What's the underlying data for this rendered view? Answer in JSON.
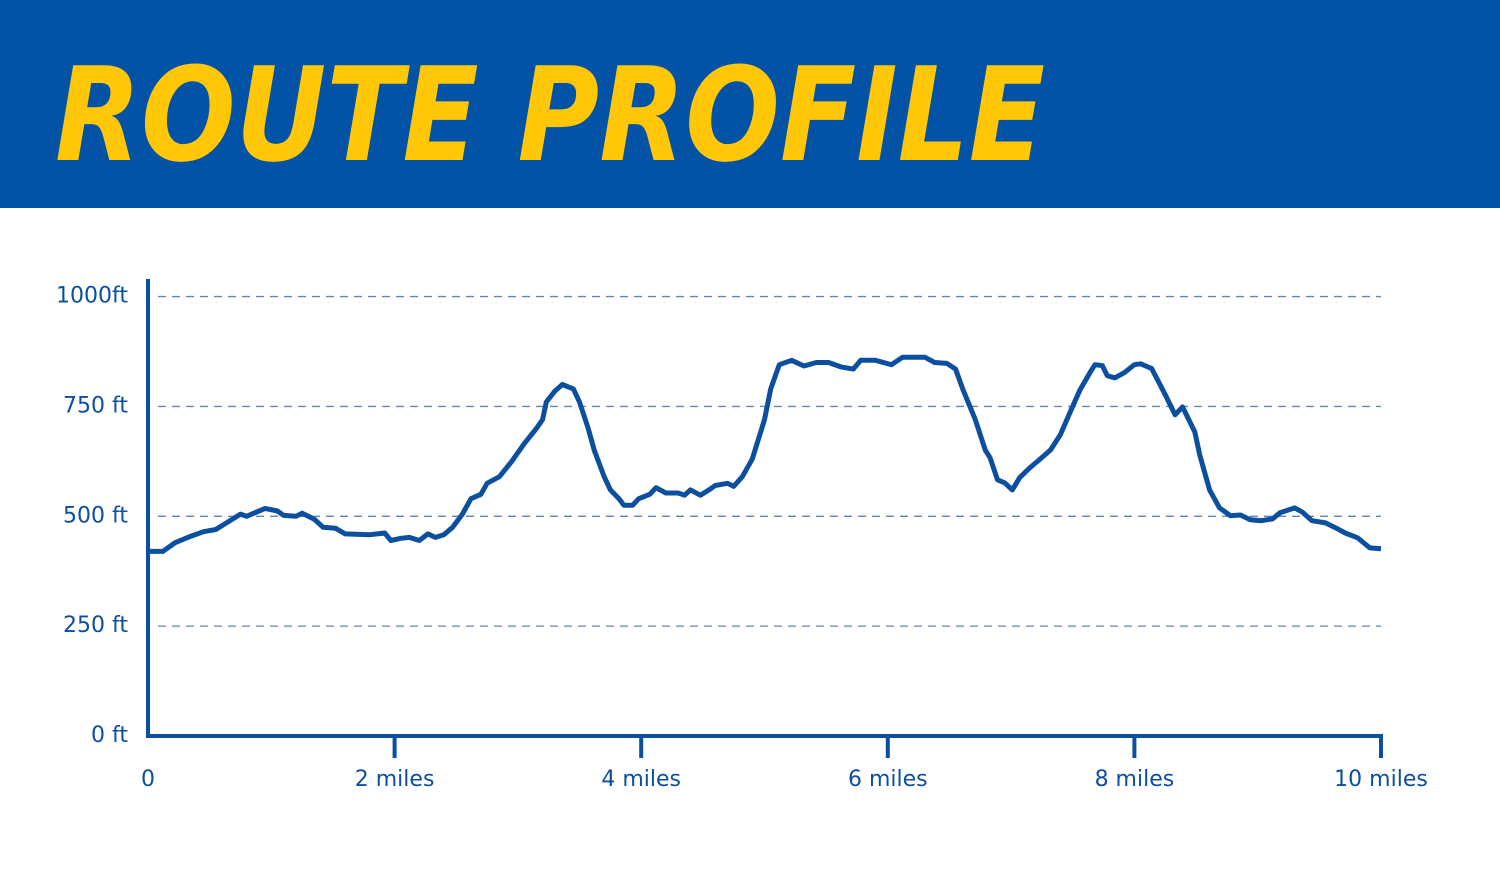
{
  "chart_data": {
    "type": "line",
    "title": "ROUTE PROFILE",
    "color": "#0b4f9e",
    "grid": true,
    "xlim": [
      0,
      10
    ],
    "ylim": [
      0,
      1040
    ],
    "xticks": [
      0,
      {
        "value": 2,
        "label": "2 miles"
      },
      {
        "value": 4,
        "label": "4 miles"
      },
      {
        "value": 6,
        "label": "6 miles"
      },
      {
        "value": 8,
        "label": "8 miles"
      },
      {
        "value": 10,
        "label": "10 miles"
      }
    ],
    "yticks": [
      {
        "value": 0,
        "label": "0 ft"
      },
      {
        "value": 250,
        "label": "250 ft"
      },
      {
        "value": 500,
        "label": "500 ft"
      },
      {
        "value": 750,
        "label": "750 ft"
      },
      {
        "value": 1000,
        "label": "1000ft"
      }
    ],
    "x": [
      0,
      0.12,
      0.22,
      0.35,
      0.45,
      0.55,
      0.75,
      0.8,
      0.95,
      1.05,
      1.1,
      1.2,
      1.25,
      1.35,
      1.42,
      1.52,
      1.6,
      1.8,
      1.92,
      1.97,
      2.05,
      2.12,
      2.2,
      2.27,
      2.33,
      2.4,
      2.47,
      2.55,
      2.62,
      2.7,
      2.75,
      2.85,
      2.95,
      3.05,
      3.15,
      3.2,
      3.23,
      3.3,
      3.36,
      3.45,
      3.5,
      3.57,
      3.62,
      3.7,
      3.75,
      3.82,
      3.86,
      3.93,
      3.98,
      4.07,
      4.12,
      4.2,
      4.3,
      4.35,
      4.4,
      4.48,
      4.55,
      4.6,
      4.7,
      4.75,
      4.82,
      4.9,
      5.0,
      5.05,
      5.12,
      5.22,
      5.32,
      5.42,
      5.52,
      5.62,
      5.72,
      5.78,
      5.9,
      6.03,
      6.12,
      6.3,
      6.38,
      6.48,
      6.55,
      6.61,
      6.71,
      6.79,
      6.83,
      6.89,
      6.95,
      7.01,
      7.07,
      7.15,
      7.23,
      7.32,
      7.4,
      7.48,
      7.56,
      7.64,
      7.68,
      7.74,
      7.78,
      7.84,
      7.92,
      8.0,
      8.05,
      8.14,
      8.25,
      8.33,
      8.39,
      8.49,
      8.53,
      8.61,
      8.69,
      8.78,
      8.86,
      8.94,
      9.03,
      9.12,
      9.18,
      9.3,
      9.36,
      9.44,
      9.55,
      9.63,
      9.71,
      9.81,
      9.91,
      10.0
    ],
    "values": [
      420,
      420,
      440,
      455,
      465,
      470,
      505,
      500,
      518,
      512,
      502,
      500,
      507,
      493,
      475,
      473,
      460,
      458,
      462,
      445,
      450,
      452,
      445,
      460,
      452,
      458,
      475,
      505,
      540,
      550,
      575,
      590,
      625,
      665,
      700,
      720,
      760,
      785,
      800,
      790,
      760,
      700,
      650,
      590,
      560,
      540,
      525,
      525,
      540,
      550,
      565,
      553,
      553,
      548,
      560,
      548,
      560,
      570,
      575,
      568,
      590,
      630,
      720,
      790,
      845,
      855,
      842,
      850,
      850,
      840,
      835,
      855,
      855,
      845,
      862,
      862,
      850,
      848,
      835,
      788,
      720,
      651,
      633,
      583,
      576,
      560,
      588,
      610,
      629,
      651,
      686,
      738,
      788,
      827,
      845,
      843,
      820,
      815,
      827,
      845,
      847,
      836,
      777,
      731,
      749,
      692,
      640,
      560,
      519,
      501,
      503,
      492,
      490,
      494,
      508,
      519,
      510,
      490,
      485,
      474,
      462,
      451,
      428,
      426
    ]
  }
}
